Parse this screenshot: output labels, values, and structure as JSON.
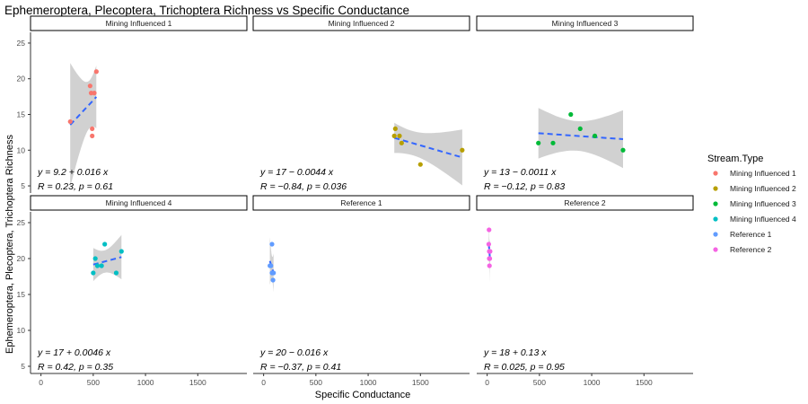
{
  "chart_data": {
    "type": "scatter",
    "title": "Ephemeroptera, Plecoptera, Trichoptera Richness vs Specific Conductance",
    "xlabel": "Specific Conductance",
    "ylabel": "Ephemeroptera, Plecoptera, Trichoptera Richness",
    "xlim": [
      -100,
      1970
    ],
    "ylim": [
      4,
      26
    ],
    "x_ticks": [
      0,
      500,
      1000,
      1500
    ],
    "y_ticks": [
      5,
      10,
      15,
      20,
      25
    ],
    "grid": false,
    "legend_position": "right",
    "legend_title": "Stream.Type",
    "panels": [
      {
        "name": "Mining Influenced 1",
        "color": "#F8766D",
        "points": [
          [
            280,
            14
          ],
          [
            470,
            19
          ],
          [
            480,
            18
          ],
          [
            490,
            13
          ],
          [
            490,
            12
          ],
          [
            510,
            18
          ],
          [
            530,
            21
          ]
        ],
        "fit_x": [
          280,
          530
        ],
        "equation": "y = 9.2 + 0.016 x",
        "stats": "R = 0.23, p = 0.61"
      },
      {
        "name": "Mining Influenced 2",
        "color": "#B79F00",
        "points": [
          [
            1250,
            12
          ],
          [
            1260,
            13
          ],
          [
            1300,
            12
          ],
          [
            1320,
            11
          ],
          [
            1500,
            8
          ],
          [
            1900,
            10
          ]
        ],
        "fit_x": [
          1250,
          1900
        ],
        "equation": "y = 17 − 0.0044 x",
        "stats": "R = −0.84, p = 0.036"
      },
      {
        "name": "Mining Influenced 3",
        "color": "#00BA38",
        "points": [
          [
            490,
            11
          ],
          [
            630,
            11
          ],
          [
            800,
            15
          ],
          [
            890,
            13
          ],
          [
            1030,
            12
          ],
          [
            1300,
            10
          ]
        ],
        "fit_x": [
          490,
          1300
        ],
        "equation": "y = 13 − 0.0011 x",
        "stats": "R = −0.12, p = 0.83"
      },
      {
        "name": "Mining Influenced 4",
        "color": "#00BFC4",
        "points": [
          [
            500,
            18
          ],
          [
            520,
            20
          ],
          [
            540,
            19
          ],
          [
            580,
            19
          ],
          [
            610,
            22
          ],
          [
            720,
            18
          ],
          [
            770,
            21
          ]
        ],
        "fit_x": [
          500,
          770
        ],
        "equation": "y = 17 + 0.0046 x",
        "stats": "R = 0.42, p = 0.35"
      },
      {
        "name": "Reference 1",
        "color": "#619CFF",
        "points": [
          [
            60,
            19
          ],
          [
            70,
            19
          ],
          [
            80,
            18
          ],
          [
            80,
            22
          ],
          [
            85,
            18
          ],
          [
            90,
            17
          ],
          [
            95,
            18
          ]
        ],
        "fit_x": [
          60,
          95
        ],
        "equation": "y = 20 − 0.016 x",
        "stats": "R = −0.37, p = 0.41"
      },
      {
        "name": "Reference 2",
        "color": "#F564E3",
        "points": [
          [
            15,
            22
          ],
          [
            18,
            24
          ],
          [
            20,
            21
          ],
          [
            20,
            20
          ],
          [
            22,
            19
          ],
          [
            25,
            20
          ],
          [
            28,
            21
          ]
        ],
        "fit_x": [
          15,
          28
        ],
        "equation": "y = 18 + 0.13 x",
        "stats": "R = 0.025, p = 0.95"
      }
    ]
  },
  "colors": {
    "fit_line": "#3366FF",
    "ribbon": "#BEBEBE",
    "axis": "#333333",
    "tick_text": "#4D4D4D"
  }
}
